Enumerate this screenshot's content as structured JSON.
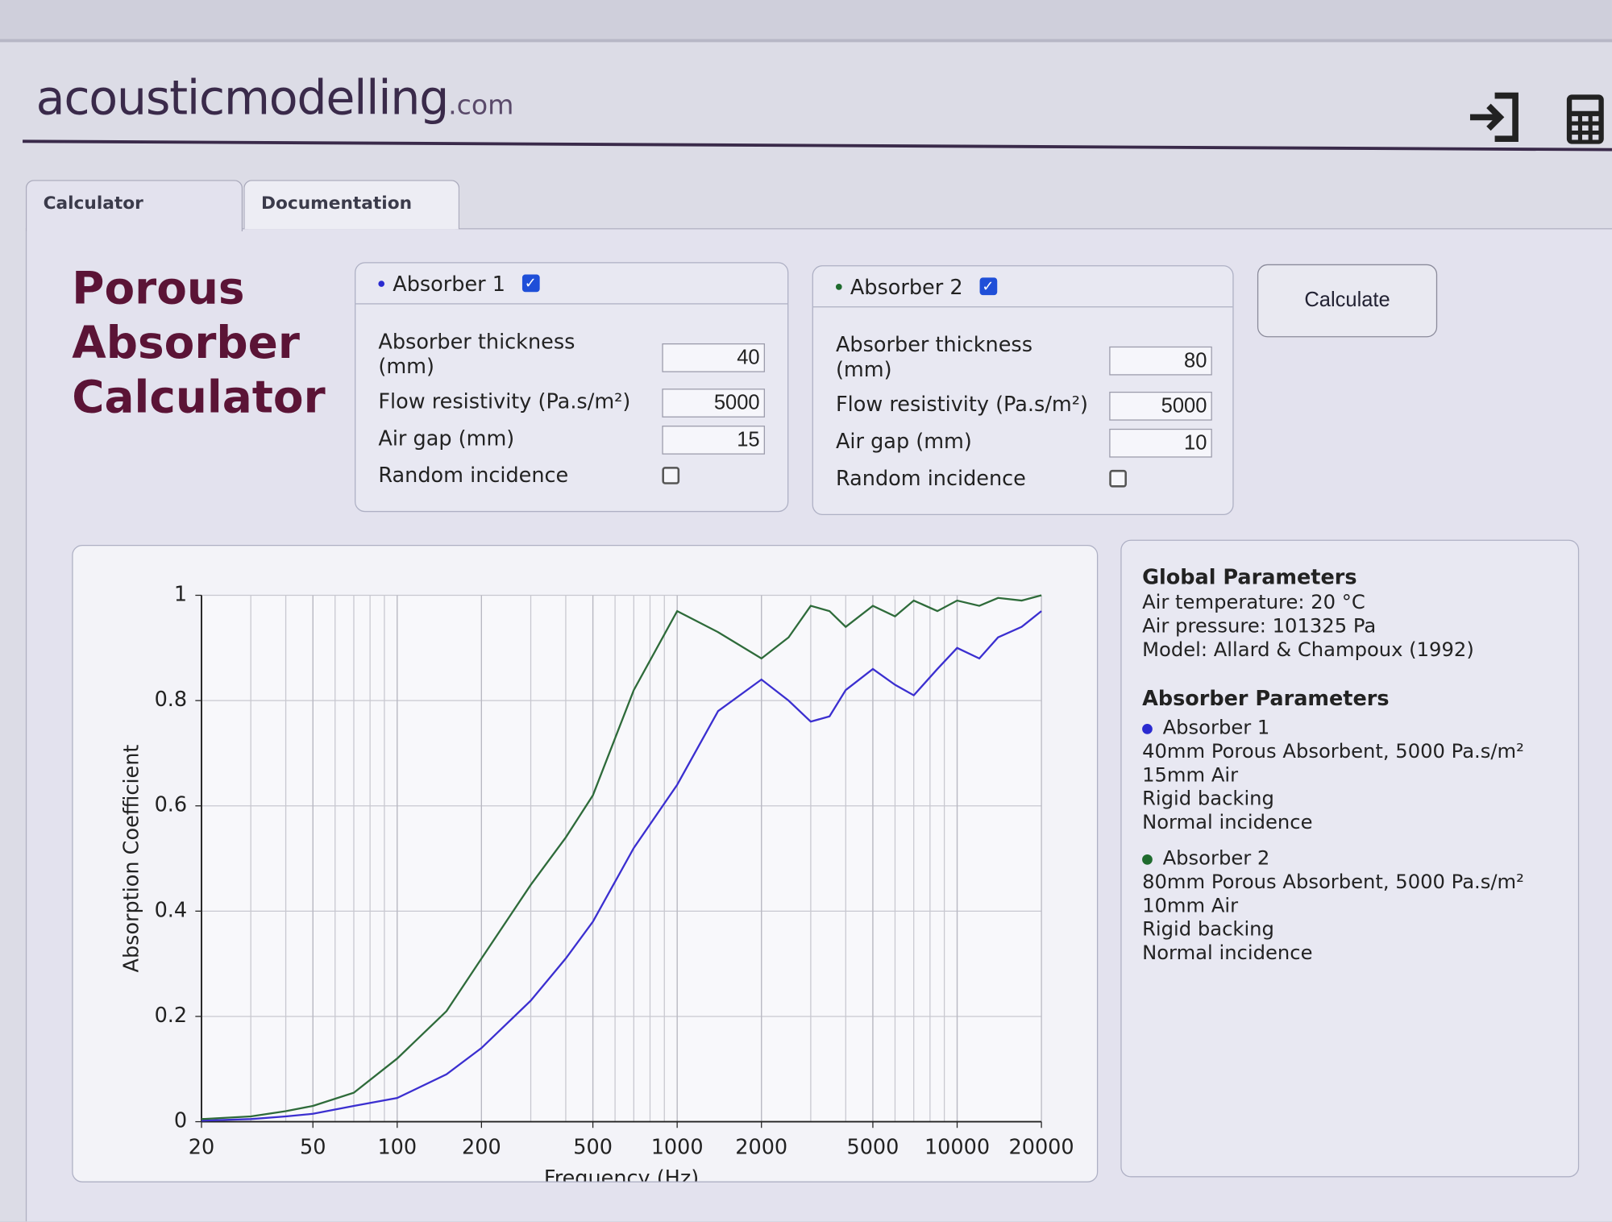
{
  "header": {
    "logo": "acousticmodelling",
    "logo_suffix": ".com"
  },
  "tabs": [
    "Calculator",
    "Documentation"
  ],
  "page_title": "Porous Absorber Calculator",
  "absorbers": [
    {
      "title": "Absorber 1",
      "color": "#2a2ad0",
      "enabled": true,
      "fields": [
        {
          "label": "Absorber thickness (mm)",
          "value": 40
        },
        {
          "label": "Flow resistivity (Pa.s/m²)",
          "value": 5000
        },
        {
          "label": "Air gap (mm)",
          "value": 15
        }
      ],
      "random_incidence_label": "Random incidence",
      "random_incidence": false
    },
    {
      "title": "Absorber 2",
      "color": "#1f6b2e",
      "enabled": true,
      "fields": [
        {
          "label": "Absorber thickness (mm)",
          "value": 80
        },
        {
          "label": "Flow resistivity (Pa.s/m²)",
          "value": 5000
        },
        {
          "label": "Air gap (mm)",
          "value": 10
        }
      ],
      "random_incidence_label": "Random incidence",
      "random_incidence": false
    }
  ],
  "calculate_button": "Calculate",
  "chart_data": {
    "type": "line",
    "xlabel": "Frequency (Hz)",
    "ylabel": "Absorption Coefficient",
    "xscale": "log",
    "grid": true,
    "x": [
      20,
      30,
      40,
      50,
      70,
      100,
      150,
      200,
      300,
      400,
      500,
      700,
      1000,
      1400,
      2000,
      2500,
      3000,
      3500,
      4000,
      5000,
      6000,
      7000,
      8500,
      10000,
      12000,
      14000,
      17000,
      20000
    ],
    "series": [
      {
        "color": "#3b2fd0",
        "values": [
          0.002,
          0.005,
          0.01,
          0.015,
          0.03,
          0.045,
          0.09,
          0.14,
          0.23,
          0.31,
          0.38,
          0.52,
          0.64,
          0.78,
          0.84,
          0.8,
          0.76,
          0.77,
          0.82,
          0.86,
          0.83,
          0.81,
          0.86,
          0.9,
          0.88,
          0.92,
          0.94,
          0.97
        ]
      },
      {
        "color": "#2e6b3a",
        "values": [
          0.005,
          0.01,
          0.02,
          0.03,
          0.055,
          0.12,
          0.21,
          0.31,
          0.45,
          0.54,
          0.62,
          0.82,
          0.97,
          0.93,
          0.88,
          0.92,
          0.98,
          0.97,
          0.94,
          0.98,
          0.96,
          0.99,
          0.97,
          0.99,
          0.98,
          0.995,
          0.99,
          1.0
        ]
      }
    ],
    "xlim": [
      20,
      20000
    ],
    "ylim": [
      0,
      1
    ],
    "xticks": [
      20,
      50,
      100,
      200,
      500,
      1000,
      2000,
      5000,
      10000,
      20000
    ],
    "yticks": [
      0,
      0.2,
      0.4,
      0.6,
      0.8,
      1
    ]
  },
  "summary": {
    "global_title": "Global Parameters",
    "global_lines": [
      "Air temperature: 20 °C",
      "Air pressure: 101325 Pa",
      "Model: Allard & Champoux (1992)"
    ],
    "absorber_title": "Absorber Parameters",
    "absorbers": [
      {
        "name": "Absorber 1",
        "color": "#2a2ad0",
        "lines": [
          "40mm Porous Absorbent, 5000 Pa.s/m²",
          "15mm Air",
          "Rigid backing",
          "Normal incidence"
        ]
      },
      {
        "name": "Absorber 2",
        "color": "#1f6b2e",
        "lines": [
          "80mm Porous Absorbent, 5000 Pa.s/m²",
          "10mm Air",
          "Rigid backing",
          "Normal incidence"
        ]
      }
    ]
  }
}
